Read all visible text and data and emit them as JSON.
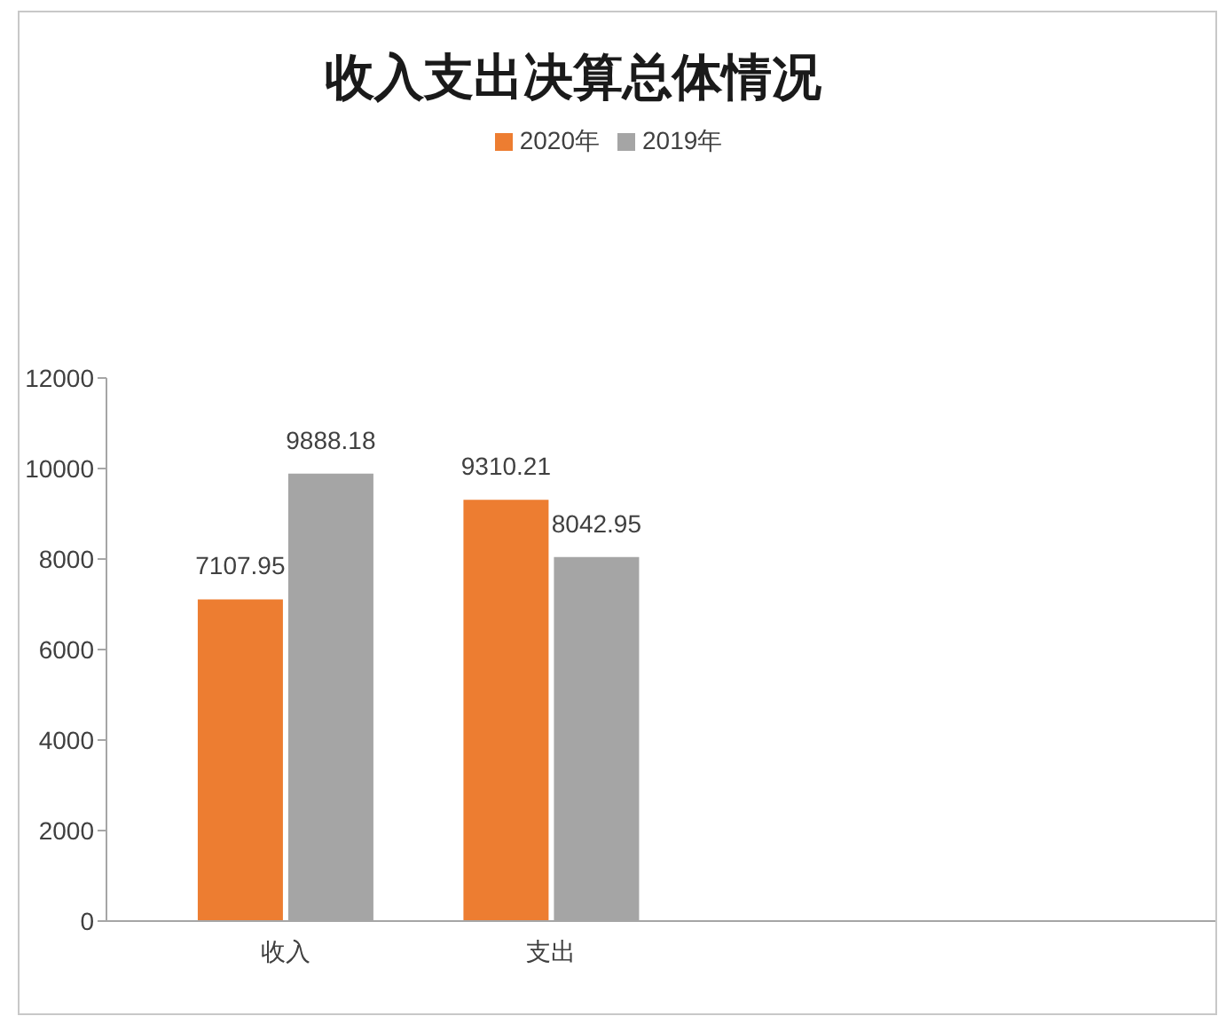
{
  "chart_data": {
    "type": "bar",
    "title": "收入支出决算总体情况",
    "categories": [
      "收入",
      "支出",
      null,
      null
    ],
    "series": [
      {
        "name": "2020年",
        "color": "#ed7d31",
        "values": [
          7107.95,
          9310.21,
          null,
          null
        ]
      },
      {
        "name": "2019年",
        "color": "#a5a5a5",
        "values": [
          9888.18,
          8042.95,
          null,
          null
        ]
      }
    ],
    "ylim": [
      0,
      12000
    ],
    "yticks": [
      0,
      2000,
      4000,
      6000,
      8000,
      10000,
      12000
    ],
    "legend": "top",
    "data_labels": true
  }
}
